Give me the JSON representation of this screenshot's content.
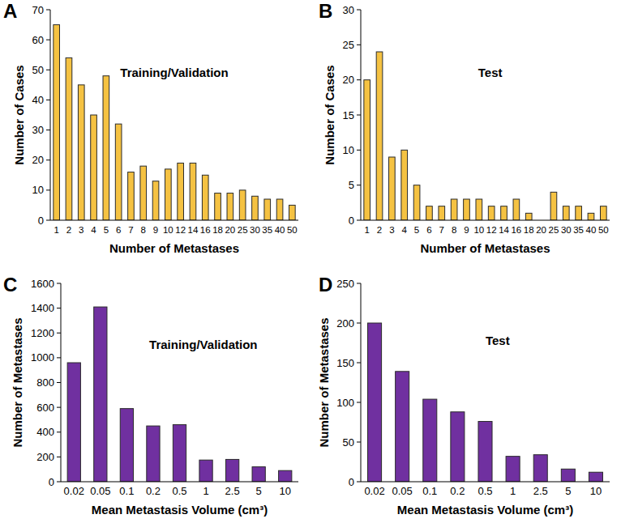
{
  "chart_data": [
    {
      "type": "bar",
      "panel": "A",
      "title": "Training/Validation",
      "x_label": "Number of Metastases",
      "y_label": "Number of Cases",
      "categories": [
        "1",
        "2",
        "3",
        "4",
        "5",
        "6",
        "7",
        "8",
        "9",
        "10",
        "12",
        "14",
        "16",
        "18",
        "20",
        "25",
        "30",
        "35",
        "40",
        "50"
      ],
      "values": [
        65,
        54,
        45,
        35,
        48,
        32,
        16,
        18,
        13,
        17,
        19,
        19,
        15,
        9,
        9,
        10,
        8,
        7,
        7,
        5
      ],
      "color": "#f5c242",
      "ylim": [
        0,
        70
      ],
      "yticks": [
        0,
        10,
        20,
        30,
        40,
        50,
        60,
        70
      ],
      "grid": false
    },
    {
      "type": "bar",
      "panel": "B",
      "title": "Test",
      "x_label": "Number of Metastases",
      "y_label": "Number of Cases",
      "categories": [
        "1",
        "2",
        "3",
        "4",
        "5",
        "6",
        "7",
        "8",
        "9",
        "10",
        "12",
        "14",
        "16",
        "18",
        "20",
        "25",
        "30",
        "35",
        "40",
        "50"
      ],
      "values": [
        20,
        24,
        9,
        10,
        5,
        2,
        2,
        3,
        3,
        3,
        2,
        2,
        3,
        1,
        0,
        4,
        2,
        2,
        1,
        2
      ],
      "color": "#f5c242",
      "ylim": [
        0,
        30
      ],
      "yticks": [
        0,
        5,
        10,
        15,
        20,
        25,
        30
      ],
      "grid": false
    },
    {
      "type": "bar",
      "panel": "C",
      "title": "Training/Validation",
      "x_label": "Mean Metastasis Volume (cm³)",
      "y_label": "Number of Metastases",
      "categories": [
        "0.02",
        "0.05",
        "0.1",
        "0.2",
        "0.5",
        "1",
        "2.5",
        "5",
        "10"
      ],
      "values": [
        960,
        1410,
        590,
        450,
        460,
        175,
        180,
        120,
        90
      ],
      "color": "#7030a0",
      "ylim": [
        0,
        1600
      ],
      "yticks": [
        0,
        200,
        400,
        600,
        800,
        1000,
        1200,
        1400,
        1600
      ],
      "grid": false
    },
    {
      "type": "bar",
      "panel": "D",
      "title": "Test",
      "x_label": "Mean Metastasis Volume (cm³)",
      "y_label": "Number of Metastases",
      "categories": [
        "0.02",
        "0.05",
        "0.1",
        "0.2",
        "0.5",
        "1",
        "2.5",
        "5",
        "10"
      ],
      "values": [
        200,
        139,
        104,
        88,
        76,
        32,
        34,
        16,
        12
      ],
      "color": "#7030a0",
      "ylim": [
        0,
        250
      ],
      "yticks": [
        0,
        50,
        100,
        150,
        200,
        250
      ],
      "grid": false
    }
  ]
}
